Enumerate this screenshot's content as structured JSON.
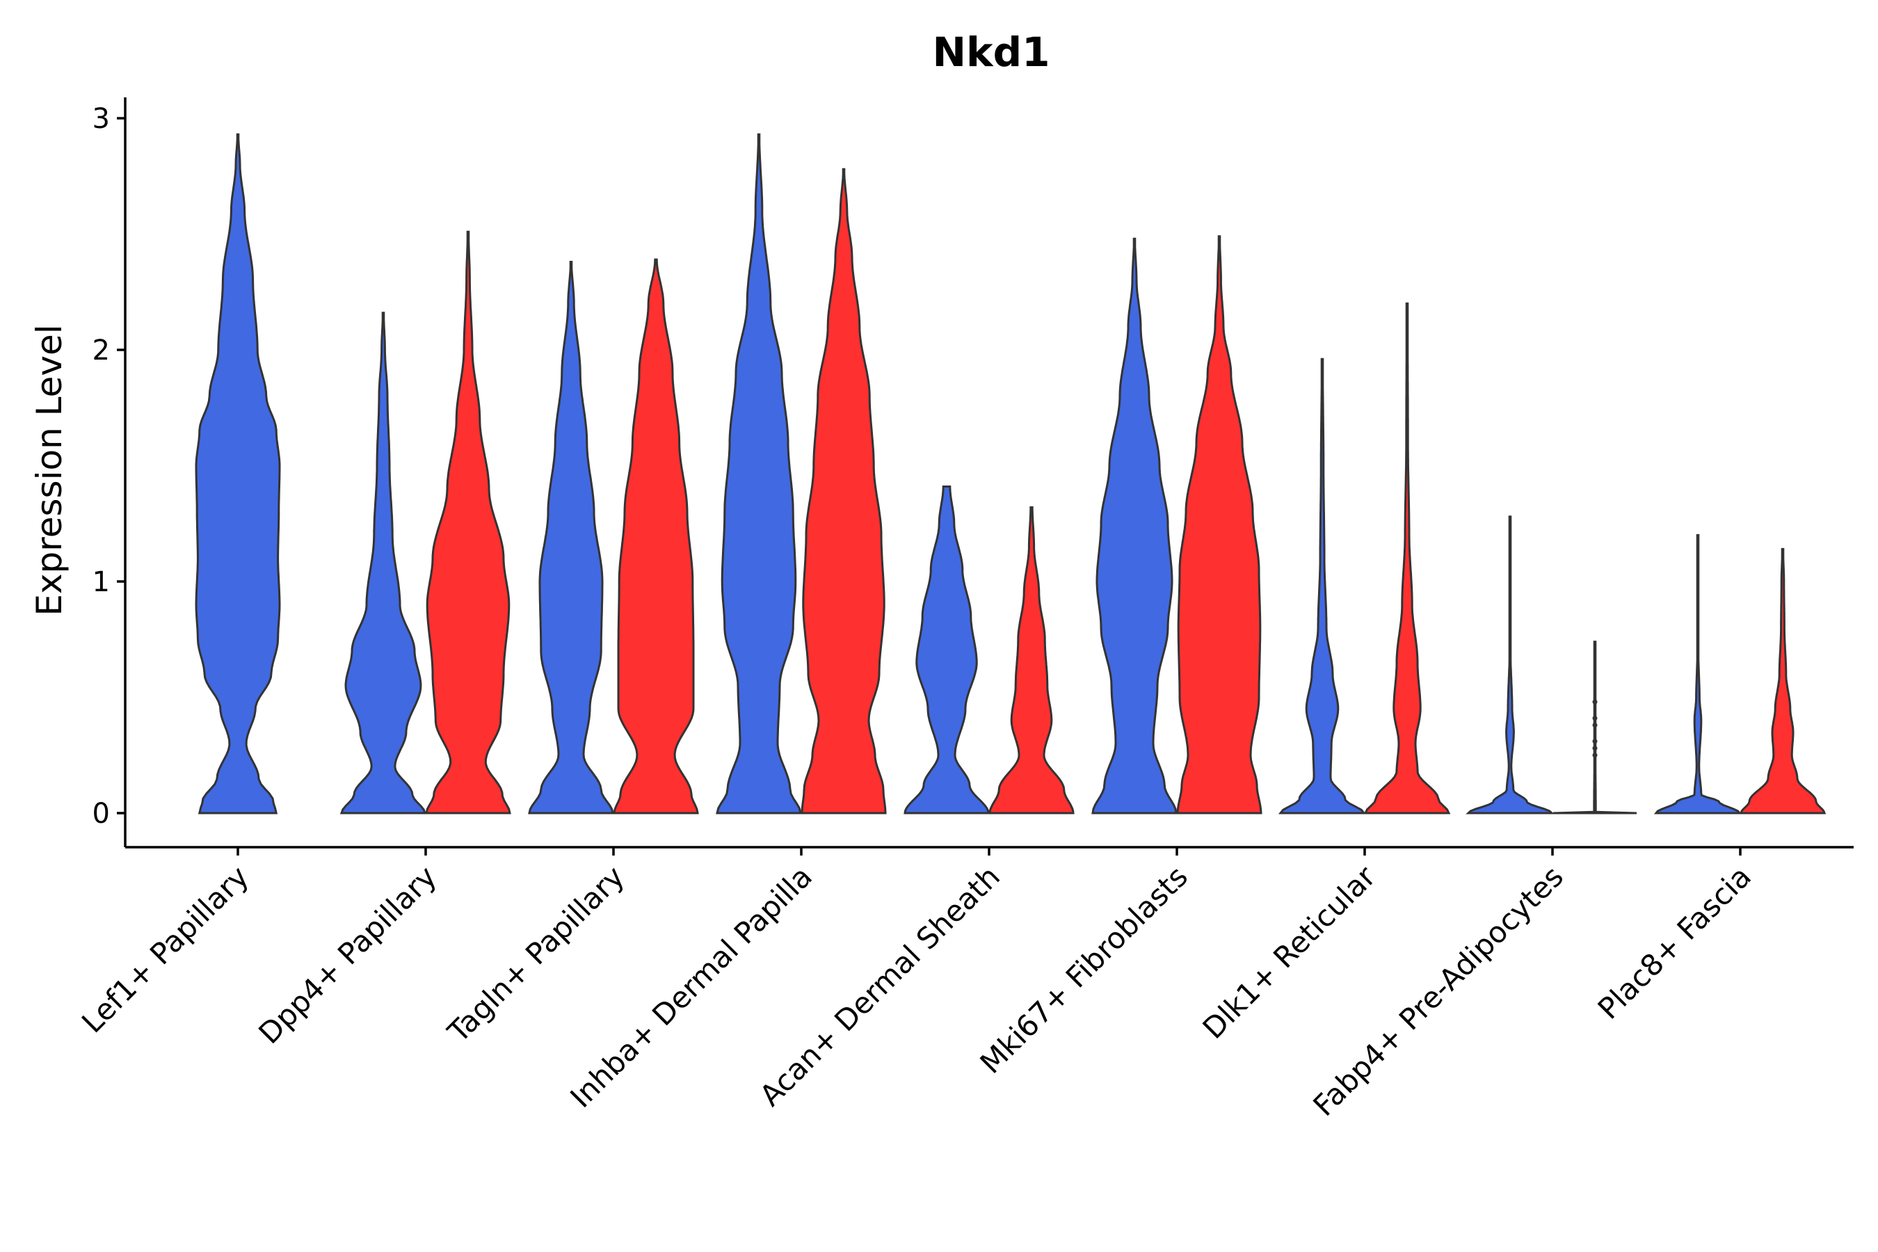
{
  "chart_data": {
    "type": "violin",
    "title": "Nkd1",
    "ylabel": "Expression Level",
    "xlabel": "",
    "ylim": [
      -0.15,
      3.08
    ],
    "yticks": [
      0,
      1,
      2,
      3
    ],
    "colors": {
      "group_a": "#4169E1",
      "group_b": "#FF3030",
      "outline": "#333333"
    },
    "categories": [
      "Lef1+ Papillary",
      "Dpp4+ Papillary",
      "Tagln+ Papillary",
      "Inhba+ Dermal Papilla",
      "Acan+ Dermal Sheath",
      "Mki67+ Fibroblasts",
      "Dlk1+ Reticular",
      "Fabp4+ Pre-Adipocytes",
      "Plac8+ Fascia"
    ],
    "violins": [
      {
        "category": 0,
        "side": "center",
        "color": "group_a",
        "max": 2.93,
        "profile": [
          [
            0,
            0.92
          ],
          [
            0.05,
            0.85
          ],
          [
            0.15,
            0.5
          ],
          [
            0.3,
            0.2
          ],
          [
            0.45,
            0.42
          ],
          [
            0.6,
            0.8
          ],
          [
            0.75,
            0.96
          ],
          [
            0.9,
            1.0
          ],
          [
            1.1,
            0.96
          ],
          [
            1.3,
            0.98
          ],
          [
            1.5,
            1.0
          ],
          [
            1.65,
            0.92
          ],
          [
            1.8,
            0.68
          ],
          [
            2.0,
            0.47
          ],
          [
            2.3,
            0.36
          ],
          [
            2.6,
            0.16
          ],
          [
            2.8,
            0.05
          ],
          [
            2.93,
            0.01
          ]
        ]
      },
      {
        "category": 1,
        "side": "left",
        "color": "group_a",
        "max": 2.16,
        "profile": [
          [
            0,
            1.0
          ],
          [
            0.08,
            0.7
          ],
          [
            0.2,
            0.28
          ],
          [
            0.35,
            0.55
          ],
          [
            0.55,
            0.9
          ],
          [
            0.7,
            0.75
          ],
          [
            0.9,
            0.4
          ],
          [
            1.2,
            0.22
          ],
          [
            1.5,
            0.15
          ],
          [
            1.8,
            0.1
          ],
          [
            2.0,
            0.04
          ],
          [
            2.16,
            0.01
          ]
        ]
      },
      {
        "category": 1,
        "side": "right",
        "color": "group_b",
        "max": 2.51,
        "profile": [
          [
            0,
            1.0
          ],
          [
            0.08,
            0.82
          ],
          [
            0.22,
            0.42
          ],
          [
            0.4,
            0.78
          ],
          [
            0.6,
            0.85
          ],
          [
            0.9,
            0.98
          ],
          [
            1.1,
            0.85
          ],
          [
            1.4,
            0.5
          ],
          [
            1.7,
            0.28
          ],
          [
            2.0,
            0.1
          ],
          [
            2.3,
            0.04
          ],
          [
            2.51,
            0.01
          ]
        ]
      },
      {
        "category": 2,
        "side": "left",
        "color": "group_a",
        "max": 2.38,
        "profile": [
          [
            0,
            1.0
          ],
          [
            0.1,
            0.72
          ],
          [
            0.25,
            0.3
          ],
          [
            0.45,
            0.45
          ],
          [
            0.7,
            0.72
          ],
          [
            1.0,
            0.75
          ],
          [
            1.3,
            0.55
          ],
          [
            1.6,
            0.38
          ],
          [
            1.9,
            0.22
          ],
          [
            2.2,
            0.07
          ],
          [
            2.38,
            0.01
          ]
        ]
      },
      {
        "category": 2,
        "side": "right",
        "color": "group_b",
        "max": 2.39,
        "profile": [
          [
            0,
            1.0
          ],
          [
            0.08,
            0.85
          ],
          [
            0.25,
            0.45
          ],
          [
            0.45,
            0.9
          ],
          [
            0.7,
            0.9
          ],
          [
            1.0,
            0.88
          ],
          [
            1.3,
            0.75
          ],
          [
            1.6,
            0.56
          ],
          [
            1.9,
            0.4
          ],
          [
            2.2,
            0.18
          ],
          [
            2.39,
            0.02
          ]
        ]
      },
      {
        "category": 3,
        "side": "left",
        "color": "group_a",
        "max": 2.93,
        "profile": [
          [
            0,
            1.0
          ],
          [
            0.1,
            0.75
          ],
          [
            0.3,
            0.45
          ],
          [
            0.55,
            0.5
          ],
          [
            0.8,
            0.82
          ],
          [
            1.0,
            0.88
          ],
          [
            1.3,
            0.82
          ],
          [
            1.6,
            0.7
          ],
          [
            1.9,
            0.55
          ],
          [
            2.2,
            0.28
          ],
          [
            2.6,
            0.08
          ],
          [
            2.93,
            0.01
          ]
        ]
      },
      {
        "category": 3,
        "side": "right",
        "color": "group_b",
        "max": 2.78,
        "profile": [
          [
            0,
            1.0
          ],
          [
            0.1,
            0.95
          ],
          [
            0.25,
            0.75
          ],
          [
            0.4,
            0.6
          ],
          [
            0.6,
            0.85
          ],
          [
            0.9,
            0.97
          ],
          [
            1.2,
            0.9
          ],
          [
            1.5,
            0.72
          ],
          [
            1.8,
            0.62
          ],
          [
            2.1,
            0.38
          ],
          [
            2.4,
            0.2
          ],
          [
            2.6,
            0.08
          ],
          [
            2.78,
            0.01
          ]
        ]
      },
      {
        "category": 4,
        "side": "left",
        "color": "group_a",
        "max": 1.41,
        "profile": [
          [
            0,
            1.0
          ],
          [
            0.12,
            0.55
          ],
          [
            0.25,
            0.2
          ],
          [
            0.45,
            0.45
          ],
          [
            0.65,
            0.72
          ],
          [
            0.85,
            0.58
          ],
          [
            1.05,
            0.38
          ],
          [
            1.25,
            0.18
          ],
          [
            1.41,
            0.08
          ]
        ]
      },
      {
        "category": 4,
        "side": "right",
        "color": "group_b",
        "max": 1.32,
        "profile": [
          [
            0,
            1.0
          ],
          [
            0.1,
            0.78
          ],
          [
            0.25,
            0.3
          ],
          [
            0.4,
            0.48
          ],
          [
            0.55,
            0.38
          ],
          [
            0.75,
            0.32
          ],
          [
            0.95,
            0.18
          ],
          [
            1.15,
            0.06
          ],
          [
            1.32,
            0.02
          ]
        ]
      },
      {
        "category": 5,
        "side": "left",
        "color": "group_a",
        "max": 2.48,
        "profile": [
          [
            0,
            1.0
          ],
          [
            0.12,
            0.72
          ],
          [
            0.3,
            0.45
          ],
          [
            0.55,
            0.55
          ],
          [
            0.8,
            0.8
          ],
          [
            1.0,
            0.9
          ],
          [
            1.25,
            0.8
          ],
          [
            1.5,
            0.6
          ],
          [
            1.8,
            0.35
          ],
          [
            2.1,
            0.15
          ],
          [
            2.3,
            0.05
          ],
          [
            2.48,
            0.01
          ]
        ]
      },
      {
        "category": 5,
        "side": "right",
        "color": "group_b",
        "max": 2.49,
        "profile": [
          [
            0,
            1.0
          ],
          [
            0.12,
            0.9
          ],
          [
            0.25,
            0.75
          ],
          [
            0.5,
            0.95
          ],
          [
            0.8,
            0.98
          ],
          [
            1.05,
            0.95
          ],
          [
            1.3,
            0.8
          ],
          [
            1.6,
            0.55
          ],
          [
            1.9,
            0.28
          ],
          [
            2.1,
            0.1
          ],
          [
            2.3,
            0.04
          ],
          [
            2.49,
            0.01
          ]
        ]
      },
      {
        "category": 6,
        "side": "left",
        "color": "group_a",
        "max": 1.96,
        "profile": [
          [
            0,
            1.0
          ],
          [
            0.06,
            0.55
          ],
          [
            0.15,
            0.2
          ],
          [
            0.3,
            0.22
          ],
          [
            0.45,
            0.38
          ],
          [
            0.6,
            0.25
          ],
          [
            0.8,
            0.1
          ],
          [
            1.1,
            0.05
          ],
          [
            1.5,
            0.03
          ],
          [
            1.96,
            0.01
          ]
        ]
      },
      {
        "category": 6,
        "side": "right",
        "color": "group_b",
        "max": 2.2,
        "profile": [
          [
            0,
            1.0
          ],
          [
            0.06,
            0.75
          ],
          [
            0.18,
            0.25
          ],
          [
            0.3,
            0.2
          ],
          [
            0.45,
            0.32
          ],
          [
            0.65,
            0.25
          ],
          [
            0.9,
            0.12
          ],
          [
            1.2,
            0.05
          ],
          [
            1.6,
            0.02
          ],
          [
            2.2,
            0.01
          ]
        ]
      },
      {
        "category": 7,
        "side": "left",
        "color": "group_a",
        "max": 1.28,
        "profile": [
          [
            0,
            1.0
          ],
          [
            0.05,
            0.4
          ],
          [
            0.1,
            0.08
          ],
          [
            0.2,
            0.03
          ],
          [
            0.35,
            0.09
          ],
          [
            0.45,
            0.05
          ],
          [
            0.7,
            0.01
          ],
          [
            1.0,
            0.005
          ],
          [
            1.28,
            0.002
          ]
        ]
      },
      {
        "category": 7,
        "side": "right",
        "color": "group_b",
        "max": 0.74,
        "profile": [
          [
            0,
            1.0
          ],
          [
            0.005,
            0.02
          ],
          [
            0.3,
            0.01
          ],
          [
            0.74,
            0.005
          ]
        ]
      },
      {
        "category": 8,
        "side": "left",
        "color": "group_a",
        "max": 1.2,
        "profile": [
          [
            0,
            1.0
          ],
          [
            0.05,
            0.5
          ],
          [
            0.08,
            0.08
          ],
          [
            0.2,
            0.03
          ],
          [
            0.4,
            0.08
          ],
          [
            0.5,
            0.04
          ],
          [
            0.7,
            0.01
          ],
          [
            1.0,
            0.005
          ],
          [
            1.2,
            0.002
          ]
        ]
      },
      {
        "category": 8,
        "side": "right",
        "color": "group_b",
        "max": 1.14,
        "profile": [
          [
            0,
            1.0
          ],
          [
            0.05,
            0.8
          ],
          [
            0.15,
            0.35
          ],
          [
            0.25,
            0.22
          ],
          [
            0.35,
            0.25
          ],
          [
            0.45,
            0.18
          ],
          [
            0.6,
            0.08
          ],
          [
            0.8,
            0.04
          ],
          [
            1.0,
            0.03
          ],
          [
            1.14,
            0.01
          ]
        ]
      }
    ],
    "outliers": [
      {
        "category": 7,
        "side": "right",
        "values": [
          0.25,
          0.28,
          0.31,
          0.38,
          0.41,
          0.48
        ]
      }
    ]
  }
}
